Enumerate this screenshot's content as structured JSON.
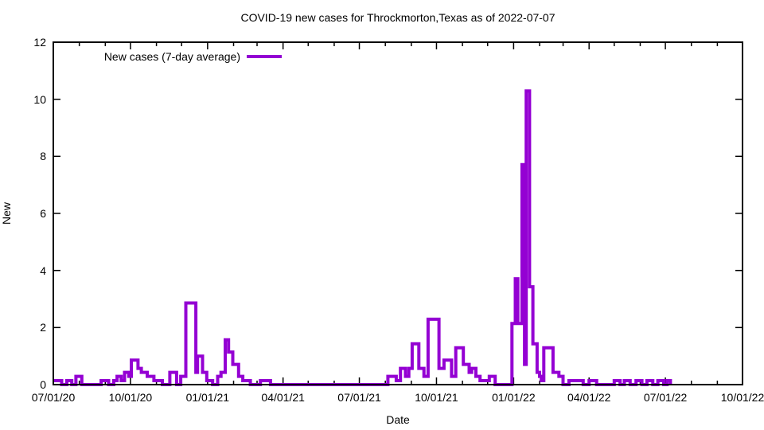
{
  "chart_data": {
    "type": "line",
    "title": "COVID-19 new cases for Throckmorton,Texas as of 2022-07-07",
    "xlabel": "Date",
    "ylabel": "New",
    "legend": {
      "label": "New cases (7-day average)",
      "position": "top-left-inside"
    },
    "line_color": "#9400D3",
    "line_width": 4,
    "grid": false,
    "ylim": [
      0,
      12
    ],
    "y_ticks": [
      0,
      2,
      4,
      6,
      8,
      10,
      12
    ],
    "x_start": "2020-07-01",
    "x_end": "2022-10-01",
    "x_major_ticks": [
      {
        "date": "2020-07-01",
        "label": "07/01/20"
      },
      {
        "date": "2020-10-01",
        "label": "10/01/20"
      },
      {
        "date": "2021-01-01",
        "label": "01/01/21"
      },
      {
        "date": "2021-04-01",
        "label": "04/01/21"
      },
      {
        "date": "2021-07-01",
        "label": "07/01/21"
      },
      {
        "date": "2021-10-01",
        "label": "10/01/21"
      },
      {
        "date": "2022-01-01",
        "label": "01/01/22"
      },
      {
        "date": "2022-04-01",
        "label": "04/01/22"
      },
      {
        "date": "2022-07-01",
        "label": "07/01/22"
      },
      {
        "date": "2022-10-01",
        "label": "10/01/22"
      }
    ],
    "x_minor_ticks": [
      "2020-08-01",
      "2020-09-01",
      "2020-11-01",
      "2020-12-01",
      "2021-02-01",
      "2021-03-01",
      "2021-05-01",
      "2021-06-01",
      "2021-08-01",
      "2021-09-01",
      "2021-11-01",
      "2021-12-01",
      "2022-02-01",
      "2022-03-01",
      "2022-05-01",
      "2022-06-01",
      "2022-08-01",
      "2022-09-01"
    ],
    "points": [
      [
        "2020-07-01",
        0.14
      ],
      [
        "2020-07-11",
        0
      ],
      [
        "2020-07-17",
        0.14
      ],
      [
        "2020-07-23",
        0
      ],
      [
        "2020-07-28",
        0.29
      ],
      [
        "2020-08-04",
        0
      ],
      [
        "2020-08-27",
        0.14
      ],
      [
        "2020-09-05",
        0
      ],
      [
        "2020-09-11",
        0.14
      ],
      [
        "2020-09-15",
        0.29
      ],
      [
        "2020-09-20",
        0.14
      ],
      [
        "2020-09-24",
        0.43
      ],
      [
        "2020-09-29",
        0.29
      ],
      [
        "2020-10-02",
        0.86
      ],
      [
        "2020-10-10",
        0.57
      ],
      [
        "2020-10-14",
        0.43
      ],
      [
        "2020-10-21",
        0.29
      ],
      [
        "2020-10-29",
        0.14
      ],
      [
        "2020-11-08",
        0
      ],
      [
        "2020-11-17",
        0.43
      ],
      [
        "2020-11-25",
        0
      ],
      [
        "2020-11-30",
        0.29
      ],
      [
        "2020-12-06",
        2.86
      ],
      [
        "2020-12-18",
        0.43
      ],
      [
        "2020-12-20",
        1.0
      ],
      [
        "2020-12-26",
        0.43
      ],
      [
        "2020-12-31",
        0.14
      ],
      [
        "2021-01-07",
        0
      ],
      [
        "2021-01-13",
        0.29
      ],
      [
        "2021-01-17",
        0.43
      ],
      [
        "2021-01-22",
        1.57
      ],
      [
        "2021-01-26",
        1.14
      ],
      [
        "2021-01-31",
        0.71
      ],
      [
        "2021-02-07",
        0.29
      ],
      [
        "2021-02-12",
        0.14
      ],
      [
        "2021-02-21",
        0
      ],
      [
        "2021-03-05",
        0.14
      ],
      [
        "2021-03-17",
        0
      ],
      [
        "2021-08-04",
        0.29
      ],
      [
        "2021-08-14",
        0.14
      ],
      [
        "2021-08-19",
        0.57
      ],
      [
        "2021-08-25",
        0.29
      ],
      [
        "2021-08-29",
        0.57
      ],
      [
        "2021-09-02",
        1.43
      ],
      [
        "2021-09-10",
        0.57
      ],
      [
        "2021-09-16",
        0.29
      ],
      [
        "2021-09-21",
        2.29
      ],
      [
        "2021-10-04",
        0.57
      ],
      [
        "2021-10-10",
        0.86
      ],
      [
        "2021-10-19",
        0.29
      ],
      [
        "2021-10-24",
        1.29
      ],
      [
        "2021-11-02",
        0.71
      ],
      [
        "2021-11-09",
        0.43
      ],
      [
        "2021-11-12",
        0.57
      ],
      [
        "2021-11-17",
        0.29
      ],
      [
        "2021-11-22",
        0.14
      ],
      [
        "2021-12-03",
        0.29
      ],
      [
        "2021-12-10",
        0
      ],
      [
        "2021-12-30",
        2.14
      ],
      [
        "2022-01-03",
        3.71
      ],
      [
        "2022-01-06",
        2.14
      ],
      [
        "2022-01-11",
        7.71
      ],
      [
        "2022-01-14",
        0.71
      ],
      [
        "2022-01-16",
        10.29
      ],
      [
        "2022-01-20",
        3.43
      ],
      [
        "2022-01-24",
        1.43
      ],
      [
        "2022-01-29",
        0.43
      ],
      [
        "2022-02-01",
        0.29
      ],
      [
        "2022-02-03",
        0.14
      ],
      [
        "2022-02-06",
        1.29
      ],
      [
        "2022-02-17",
        0.43
      ],
      [
        "2022-02-24",
        0.29
      ],
      [
        "2022-03-01",
        0
      ],
      [
        "2022-03-08",
        0.14
      ],
      [
        "2022-03-25",
        0
      ],
      [
        "2022-04-01",
        0.14
      ],
      [
        "2022-04-10",
        0
      ],
      [
        "2022-05-01",
        0.14
      ],
      [
        "2022-05-08",
        0
      ],
      [
        "2022-05-13",
        0.14
      ],
      [
        "2022-05-20",
        0
      ],
      [
        "2022-05-27",
        0.14
      ],
      [
        "2022-06-03",
        0
      ],
      [
        "2022-06-09",
        0.14
      ],
      [
        "2022-06-16",
        0
      ],
      [
        "2022-06-22",
        0.14
      ],
      [
        "2022-06-29",
        0
      ],
      [
        "2022-07-03",
        0.14
      ],
      [
        "2022-07-07",
        0
      ]
    ]
  }
}
